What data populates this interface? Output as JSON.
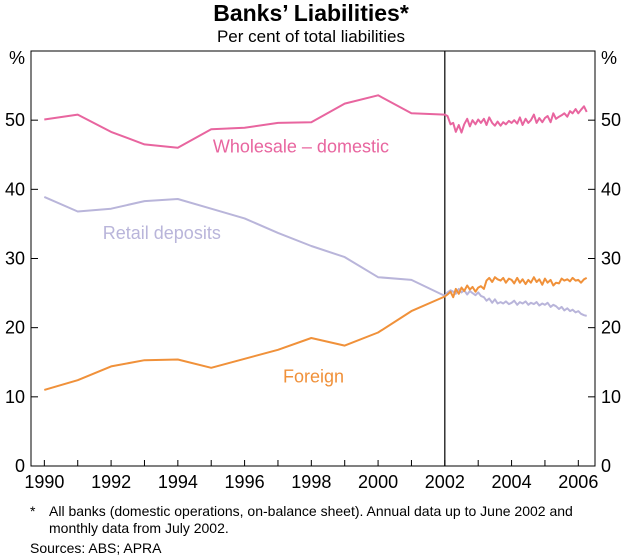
{
  "title": "Banks’ Liabilities*",
  "subtitle": "Per cent of total liabilities",
  "footnote_marker": "*",
  "footnote": "All banks (domestic operations, on-balance sheet). Annual data up to June 2002 and monthly data from July 2002.",
  "sources": "Sources: ABS; APRA",
  "colors": {
    "wholesale": "#e8659f",
    "retail": "#b9b5da",
    "foreign": "#f0913a",
    "axis": "#000000",
    "divider": "#000000"
  },
  "chart_data": {
    "type": "line",
    "title": "Banks’ Liabilities*",
    "subtitle": "Per cent of total liabilities",
    "ylabel_left": "%",
    "ylabel_right": "%",
    "xlim": [
      1989.6,
      2006.5
    ],
    "ylim": [
      0,
      60
    ],
    "yticks": [
      0,
      10,
      20,
      30,
      40,
      50
    ],
    "xticks": [
      1990,
      1992,
      1994,
      1996,
      1998,
      2000,
      2002,
      2004,
      2006
    ],
    "divider_x": 2002.0,
    "series": [
      {
        "name": "Wholesale – domestic",
        "label": "Wholesale – domestic",
        "color_key": "wholesale",
        "x": [
          1990,
          1991,
          1992,
          1993,
          1994,
          1995,
          1996,
          1997,
          1998,
          1999,
          2000,
          2001,
          2002,
          2002.08,
          2002.17,
          2002.25,
          2002.33,
          2002.42,
          2002.5,
          2002.58,
          2002.67,
          2002.75,
          2002.83,
          2002.92,
          2003,
          2003.08,
          2003.17,
          2003.25,
          2003.33,
          2003.42,
          2003.5,
          2003.58,
          2003.67,
          2003.75,
          2003.83,
          2003.92,
          2004,
          2004.08,
          2004.17,
          2004.25,
          2004.33,
          2004.42,
          2004.5,
          2004.58,
          2004.67,
          2004.75,
          2004.83,
          2004.92,
          2005,
          2005.08,
          2005.17,
          2005.25,
          2005.33,
          2005.42,
          2005.5,
          2005.58,
          2005.67,
          2005.75,
          2005.83,
          2005.92,
          2006,
          2006.08,
          2006.17,
          2006.25
        ],
        "values": [
          50.1,
          50.8,
          48.3,
          46.5,
          46.0,
          48.7,
          48.9,
          49.6,
          49.7,
          52.4,
          53.6,
          51.0,
          50.8,
          50.6,
          49.4,
          49.6,
          48.3,
          49.3,
          48.2,
          49.4,
          50.2,
          49.1,
          50.0,
          49.4,
          50.1,
          49.6,
          50.2,
          49.3,
          50.4,
          49.6,
          49.2,
          49.8,
          49.2,
          49.7,
          49.4,
          49.9,
          49.6,
          50.0,
          49.5,
          50.4,
          49.3,
          50.2,
          49.6,
          50.0,
          50.8,
          49.6,
          50.3,
          49.7,
          50.3,
          50.6,
          49.7,
          51.0,
          50.2,
          50.5,
          50.7,
          51.0,
          50.5,
          51.3,
          51.0,
          51.6,
          51.0,
          51.5,
          52.0,
          51.2
        ]
      },
      {
        "name": "Retail deposits",
        "label": "Retail deposits",
        "color_key": "retail",
        "x": [
          1990,
          1991,
          1992,
          1993,
          1994,
          1995,
          1996,
          1997,
          1998,
          1999,
          2000,
          2001,
          2002,
          2002.08,
          2002.17,
          2002.25,
          2002.33,
          2002.42,
          2002.5,
          2002.58,
          2002.67,
          2002.75,
          2002.83,
          2002.92,
          2003,
          2003.08,
          2003.17,
          2003.25,
          2003.33,
          2003.42,
          2003.5,
          2003.58,
          2003.67,
          2003.75,
          2003.83,
          2003.92,
          2004,
          2004.08,
          2004.17,
          2004.25,
          2004.33,
          2004.42,
          2004.5,
          2004.58,
          2004.67,
          2004.75,
          2004.83,
          2004.92,
          2005,
          2005.08,
          2005.17,
          2005.25,
          2005.33,
          2005.42,
          2005.5,
          2005.58,
          2005.67,
          2005.75,
          2005.83,
          2005.92,
          2006,
          2006.08,
          2006.17,
          2006.25
        ],
        "values": [
          38.9,
          36.8,
          37.2,
          38.3,
          38.6,
          37.2,
          35.8,
          33.7,
          31.8,
          30.2,
          27.3,
          26.9,
          24.6,
          25.1,
          25.4,
          25.2,
          24.9,
          25.6,
          25.1,
          25.4,
          24.8,
          25.3,
          25.0,
          24.7,
          25.1,
          24.6,
          24.4,
          23.9,
          24.2,
          23.6,
          24.1,
          23.5,
          23.7,
          23.5,
          23.8,
          23.4,
          23.6,
          23.9,
          23.3,
          23.7,
          23.5,
          23.8,
          23.3,
          23.6,
          23.4,
          23.7,
          23.2,
          23.5,
          23.3,
          23.6,
          23.0,
          23.3,
          23.1,
          22.7,
          23.0,
          22.5,
          22.8,
          22.4,
          22.6,
          22.2,
          22.4,
          22.0,
          21.8,
          21.7
        ]
      },
      {
        "name": "Foreign",
        "label": "Foreign",
        "color_key": "foreign",
        "x": [
          1990,
          1991,
          1992,
          1993,
          1994,
          1995,
          1996,
          1997,
          1998,
          1999,
          2000,
          2001,
          2002,
          2002.08,
          2002.17,
          2002.25,
          2002.33,
          2002.42,
          2002.5,
          2002.58,
          2002.67,
          2002.75,
          2002.83,
          2002.92,
          2003,
          2003.08,
          2003.17,
          2003.25,
          2003.33,
          2003.42,
          2003.5,
          2003.58,
          2003.67,
          2003.75,
          2003.83,
          2003.92,
          2004,
          2004.08,
          2004.17,
          2004.25,
          2004.33,
          2004.42,
          2004.5,
          2004.58,
          2004.67,
          2004.75,
          2004.83,
          2004.92,
          2005,
          2005.08,
          2005.17,
          2005.25,
          2005.33,
          2005.42,
          2005.5,
          2005.58,
          2005.67,
          2005.75,
          2005.83,
          2005.92,
          2006,
          2006.08,
          2006.17,
          2006.25
        ],
        "values": [
          11.0,
          12.4,
          14.4,
          15.3,
          15.4,
          14.2,
          15.5,
          16.8,
          18.5,
          17.4,
          19.3,
          22.4,
          24.5,
          24.8,
          25.2,
          24.4,
          25.6,
          24.9,
          25.8,
          25.3,
          26.1,
          25.5,
          25.9,
          25.2,
          25.8,
          26.0,
          25.6,
          26.8,
          27.2,
          26.6,
          27.3,
          27.0,
          26.8,
          27.2,
          26.5,
          27.1,
          26.9,
          26.4,
          27.2,
          26.5,
          27.0,
          26.3,
          26.9,
          26.5,
          27.3,
          26.6,
          27.0,
          26.2,
          27.1,
          26.5,
          26.9,
          26.1,
          26.5,
          26.4,
          27.1,
          26.8,
          27.0,
          26.7,
          27.2,
          26.8,
          26.9,
          26.5,
          27.0,
          27.2
        ]
      }
    ]
  }
}
